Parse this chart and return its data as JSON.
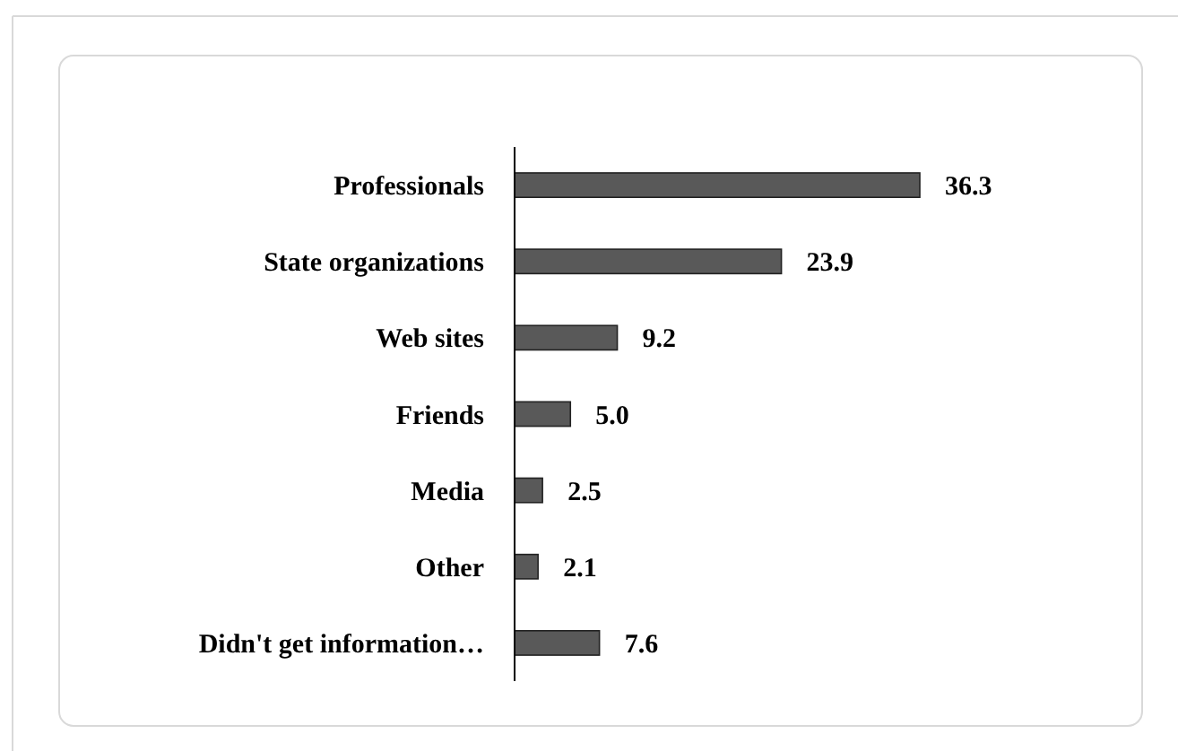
{
  "chart_data": {
    "type": "bar",
    "orientation": "horizontal",
    "categories": [
      "Professionals",
      "State organizations",
      "Web sites",
      "Friends",
      "Media",
      "Other",
      "Didn't get information…"
    ],
    "values": [
      36.3,
      23.9,
      9.2,
      5.0,
      2.5,
      2.1,
      7.6
    ],
    "value_labels": [
      "36.3",
      "23.9",
      "9.2",
      "5.0",
      "2.5",
      "2.1",
      "7.6"
    ],
    "color": "#595959"
  }
}
